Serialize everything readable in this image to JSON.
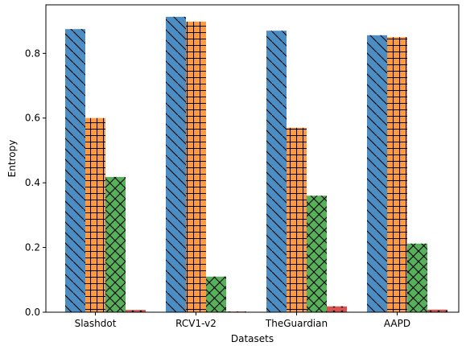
{
  "chart_data": {
    "type": "bar",
    "categories": [
      "Slashdot",
      "RCV1-v2",
      "TheGuardian",
      "AAPD"
    ],
    "series": [
      {
        "values": [
          0.875,
          0.913,
          0.87,
          0.856
        ],
        "color": "#4c8ec4",
        "hatch": "diagonal"
      },
      {
        "values": [
          0.6,
          0.898,
          0.57,
          0.85
        ],
        "color": "#ff9a42",
        "hatch": "grid"
      },
      {
        "values": [
          0.418,
          0.11,
          0.36,
          0.212
        ],
        "color": "#56b15a",
        "hatch": "crosshatch"
      },
      {
        "values": [
          0.007,
          0.002,
          0.018,
          0.008
        ],
        "color": "#d8534f",
        "hatch": "dots"
      }
    ],
    "xlabel": "Datasets",
    "ylabel": "Entropy",
    "ylim": [
      0,
      0.95
    ],
    "yticks": [
      "0.0",
      "0.2",
      "0.4",
      "0.6",
      "0.8"
    ],
    "grid": false,
    "legend": false
  }
}
